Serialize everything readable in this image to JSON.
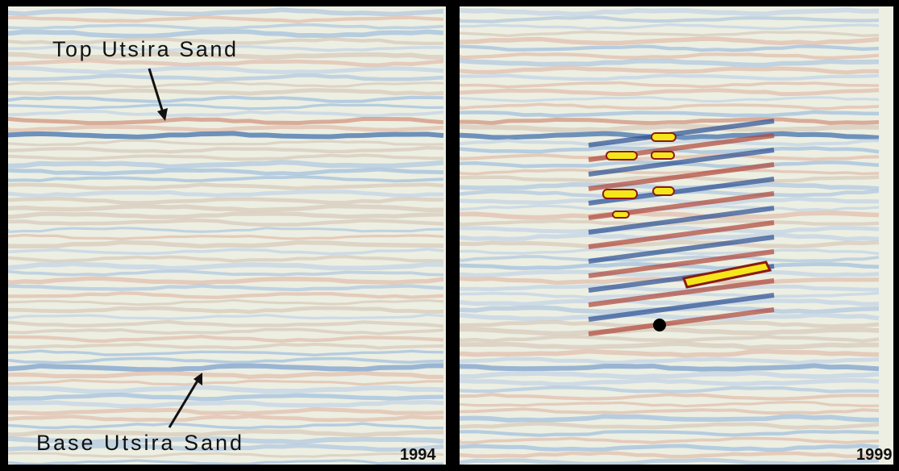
{
  "panels": [
    {
      "labels": [
        "Top Utsira Sand",
        "Base Utsira Sand"
      ],
      "year": "1994"
    },
    {
      "year": "1999"
    }
  ]
}
